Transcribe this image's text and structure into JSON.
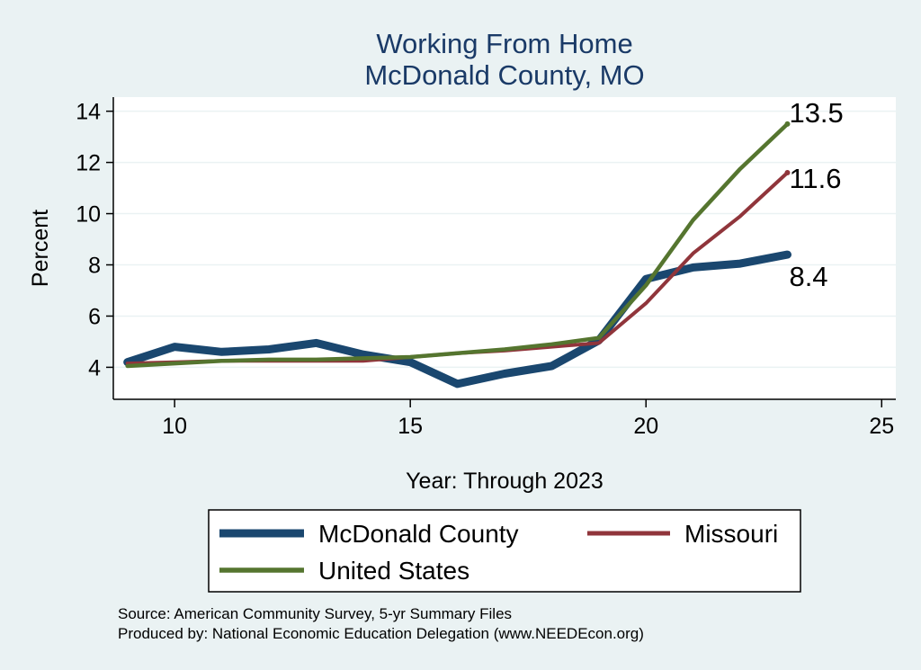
{
  "chart_data": {
    "type": "line",
    "title": [
      "Working From Home",
      "McDonald County, MO"
    ],
    "xlabel": "Year: Through 2023",
    "ylabel": "Percent",
    "xlim": [
      8.7,
      25.3
    ],
    "ylim": [
      2.75,
      14.55
    ],
    "xticks": [
      10,
      15,
      20,
      25
    ],
    "yticks": [
      4,
      6,
      8,
      10,
      12,
      14
    ],
    "grid": true,
    "legend_position": "bottom",
    "series": [
      {
        "name": "McDonald County",
        "color": "#1a476f",
        "x": [
          9,
          10,
          11,
          12,
          13,
          14,
          15,
          16,
          17,
          18,
          19,
          20,
          21,
          22,
          23
        ],
        "values": [
          4.2,
          4.8,
          4.6,
          4.7,
          4.95,
          4.5,
          4.2,
          3.35,
          3.75,
          4.05,
          5.05,
          7.45,
          7.9,
          8.05,
          8.4
        ],
        "end_label": "8.4"
      },
      {
        "name": "Missouri",
        "color": "#90353b",
        "x": [
          9,
          10,
          11,
          12,
          13,
          14,
          15,
          16,
          17,
          18,
          19,
          20,
          21,
          22,
          23
        ],
        "values": [
          4.15,
          4.2,
          4.25,
          4.25,
          4.25,
          4.25,
          4.4,
          4.55,
          4.65,
          4.8,
          4.95,
          6.5,
          8.45,
          9.9,
          11.6
        ],
        "end_label": "11.6"
      },
      {
        "name": "United States",
        "color": "#55752f",
        "x": [
          9,
          10,
          11,
          12,
          13,
          14,
          15,
          16,
          17,
          18,
          19,
          20,
          21,
          22,
          23
        ],
        "values": [
          4.05,
          4.15,
          4.25,
          4.3,
          4.3,
          4.35,
          4.4,
          4.55,
          4.7,
          4.9,
          5.15,
          7.2,
          9.75,
          11.75,
          13.5
        ],
        "end_label": "13.5"
      }
    ],
    "notes": [
      "Source: American Community Survey, 5-yr Summary Files",
      "Produced by: National Economic Education Delegation (www.NEEDEcon.org)"
    ]
  }
}
